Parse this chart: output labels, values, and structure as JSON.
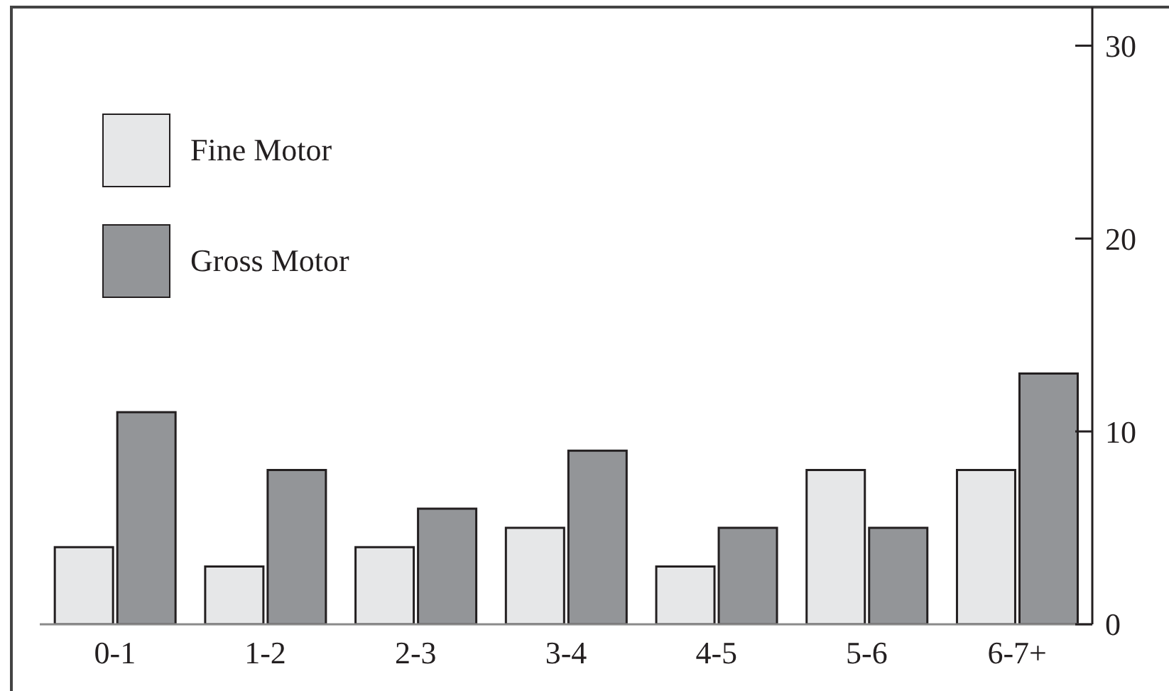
{
  "chart_data": {
    "type": "bar",
    "categories": [
      "0-1",
      "1-2",
      "2-3",
      "3-4",
      "4-5",
      "5-6",
      "6-7+"
    ],
    "series": [
      {
        "name": "Fine Motor",
        "color": "#e6e7e8",
        "values": [
          4,
          3,
          4,
          5,
          3,
          8,
          8
        ]
      },
      {
        "name": "Gross Motor",
        "color": "#939598",
        "values": [
          11,
          8,
          6,
          9,
          5,
          5,
          13
        ]
      }
    ],
    "ylim": [
      0,
      32
    ],
    "yticks": [
      0,
      10,
      20,
      30
    ],
    "legend": "top left"
  }
}
